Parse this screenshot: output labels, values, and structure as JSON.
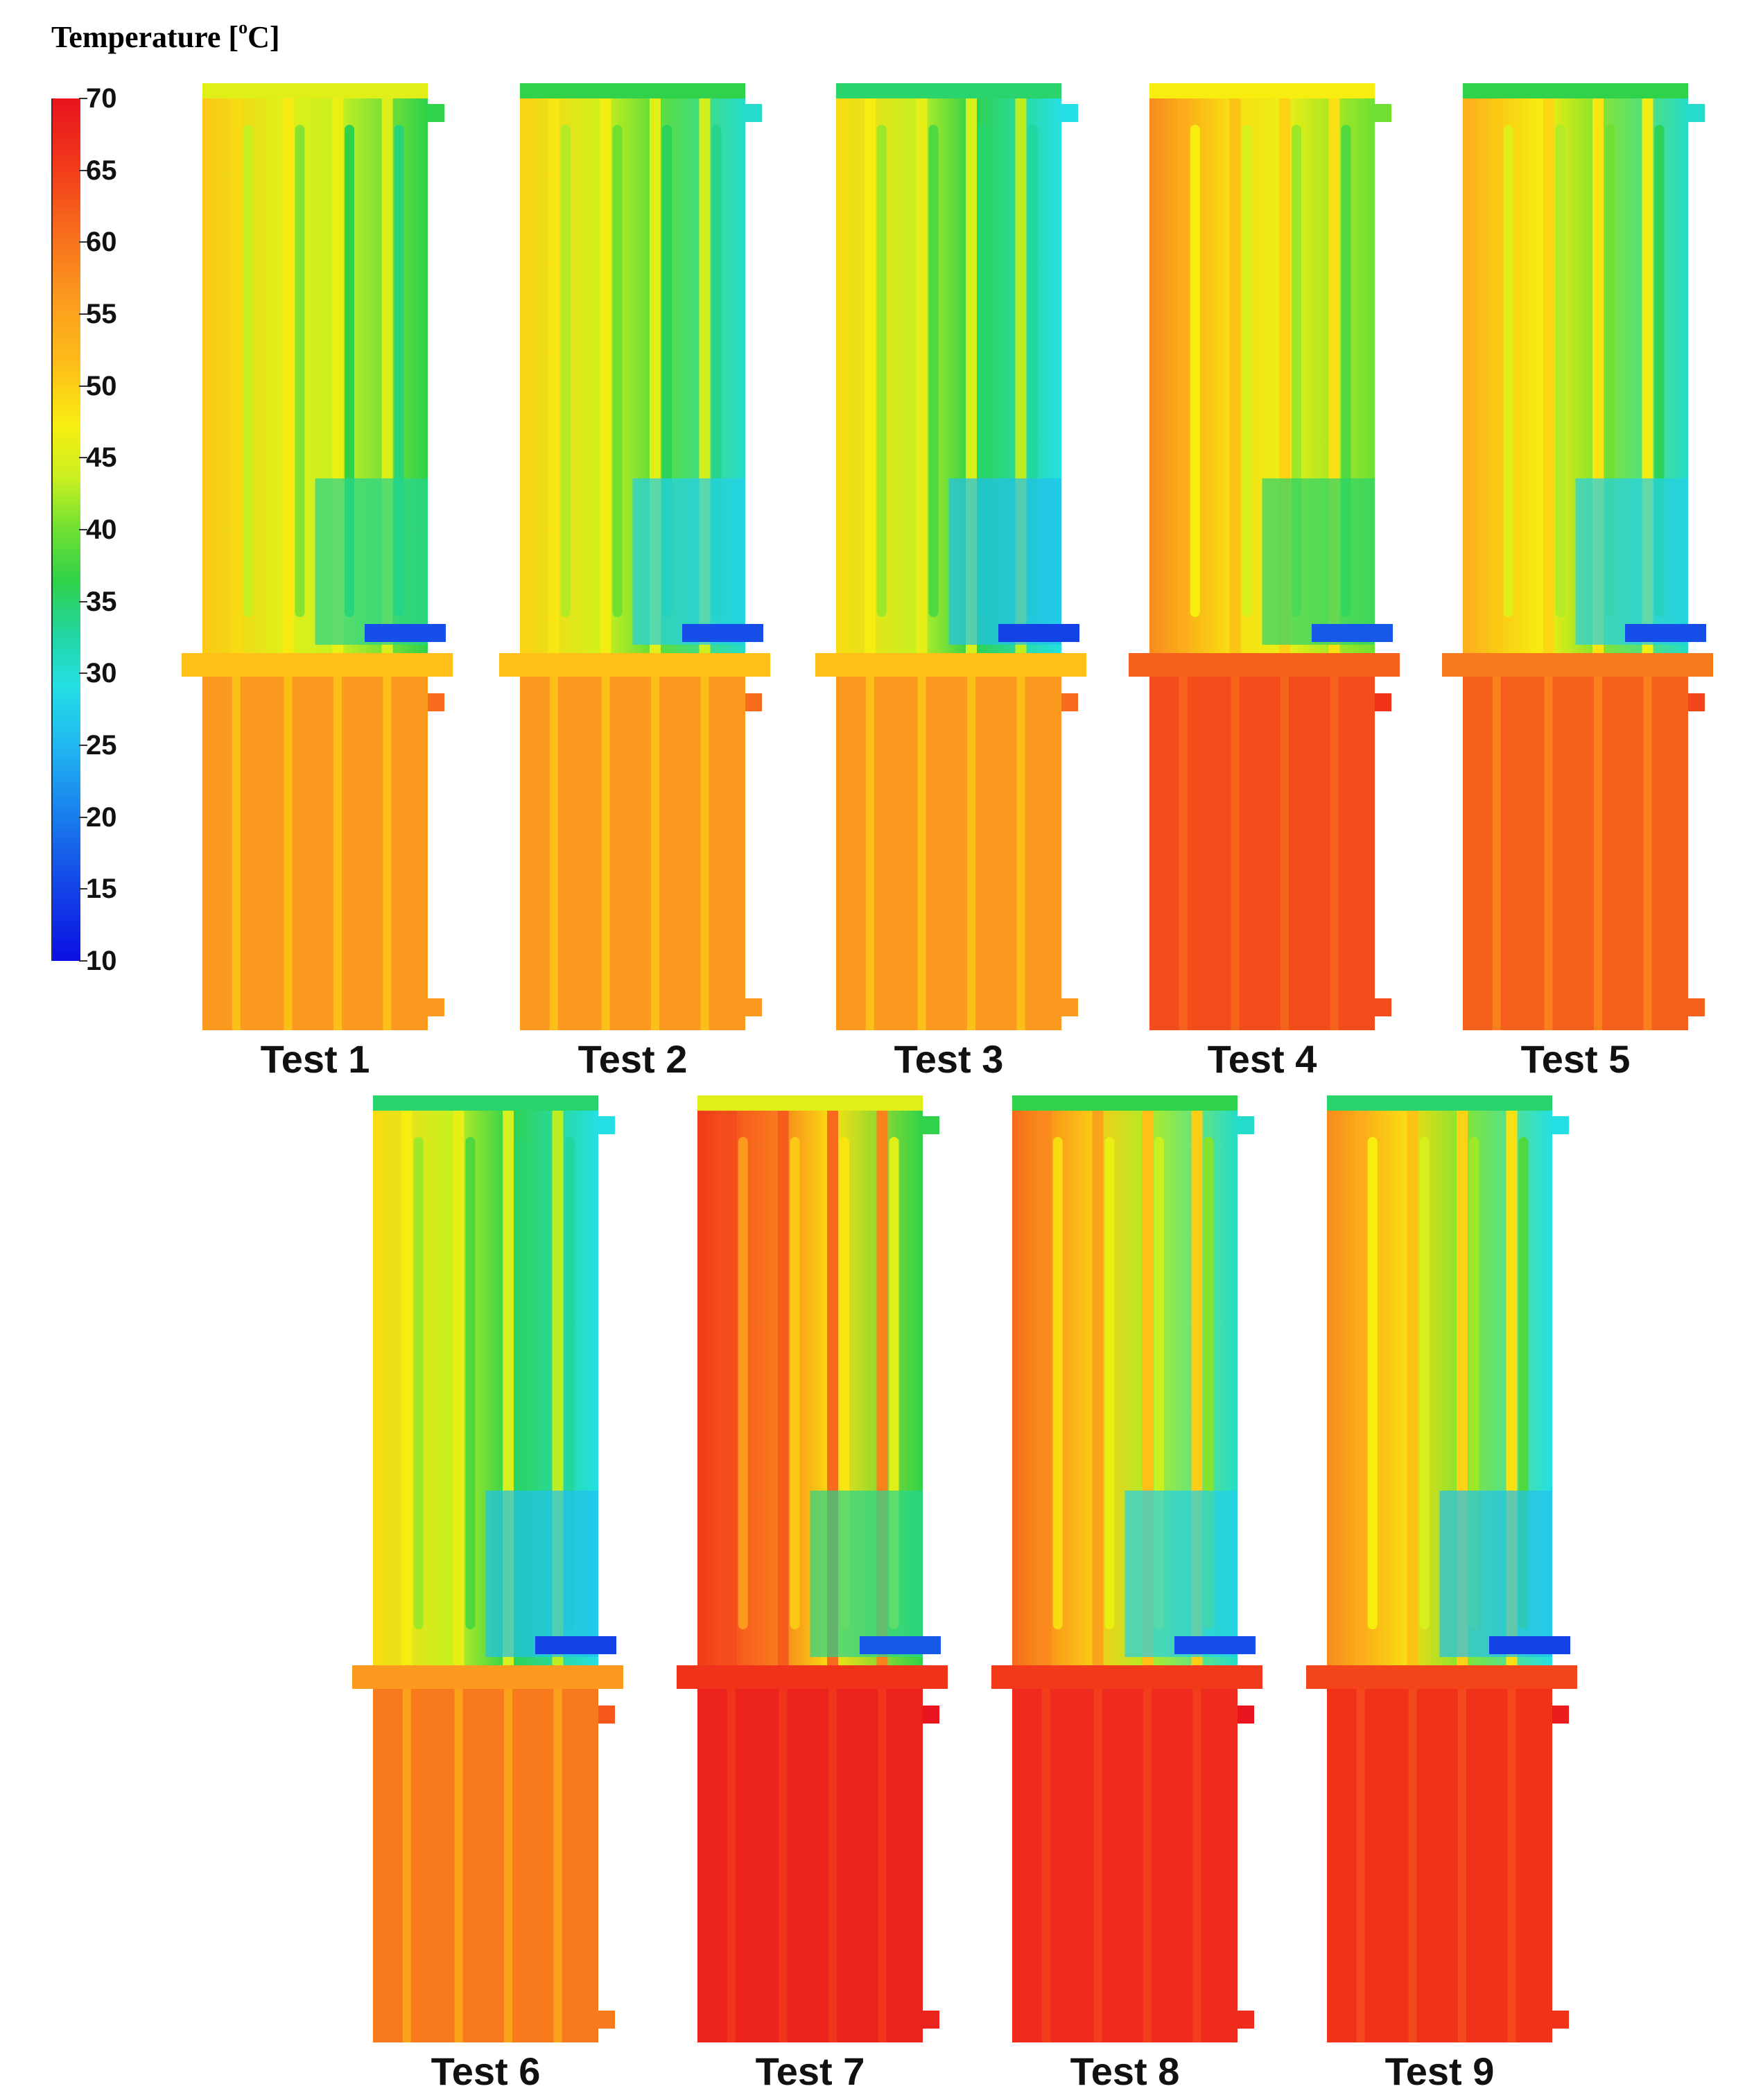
{
  "legend": {
    "title_prefix": "Temperature [",
    "title_degree": "o",
    "title_unit": "C]",
    "ticks": [
      "70",
      "65",
      "60",
      "55",
      "50",
      "45",
      "40",
      "35",
      "30",
      "25",
      "20",
      "15",
      "10"
    ],
    "range": [
      10,
      70
    ],
    "colors": {
      "t70": "#e8141e",
      "t60": "#f86a1c",
      "t55": "#fdbf18",
      "t50": "#f7ee10",
      "t45": "#c9f020",
      "t40": "#2fd24a",
      "t35": "#22d6a0",
      "t30": "#24e0e4",
      "t25": "#20b8f0",
      "t20": "#1a86ee",
      "t10": "#0a10e2"
    }
  },
  "tests": [
    {
      "label": "Test 1",
      "bottom_temp": 57,
      "top_temp": 52,
      "right_temp": 40,
      "inlet_temp": 15
    },
    {
      "label": "Test 2",
      "bottom_temp": 57,
      "top_temp": 51,
      "right_temp": 32,
      "inlet_temp": 15
    },
    {
      "label": "Test 3",
      "bottom_temp": 57,
      "top_temp": 50,
      "right_temp": 30,
      "inlet_temp": 14
    },
    {
      "label": "Test 4",
      "bottom_temp": 63,
      "top_temp": 56,
      "right_temp": 42,
      "inlet_temp": 16
    },
    {
      "label": "Test 5",
      "bottom_temp": 61,
      "top_temp": 54,
      "right_temp": 32,
      "inlet_temp": 15
    },
    {
      "label": "Test 6",
      "bottom_temp": 59,
      "top_temp": 50,
      "right_temp": 30,
      "inlet_temp": 14
    },
    {
      "label": "Test 7",
      "bottom_temp": 68,
      "top_temp": 63,
      "right_temp": 40,
      "inlet_temp": 16
    },
    {
      "label": "Test 8",
      "bottom_temp": 67,
      "top_temp": 58,
      "right_temp": 32,
      "inlet_temp": 15
    },
    {
      "label": "Test 9",
      "bottom_temp": 66,
      "top_temp": 56,
      "right_temp": 30,
      "inlet_temp": 14
    }
  ]
}
